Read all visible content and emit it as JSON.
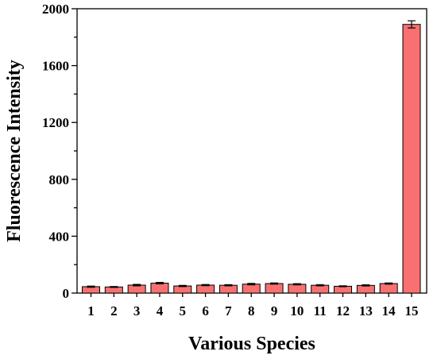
{
  "chart_data": {
    "type": "bar",
    "title": "",
    "xlabel": "Various Species",
    "ylabel": "Fluorescence Intensity",
    "ylim": [
      0,
      2000
    ],
    "yticks": [
      0,
      400,
      800,
      1200,
      1600,
      2000
    ],
    "y_minor_step": 200,
    "grid": false,
    "categories": [
      "1",
      "2",
      "3",
      "4",
      "5",
      "6",
      "7",
      "8",
      "9",
      "10",
      "11",
      "12",
      "13",
      "14",
      "15"
    ],
    "values": [
      45,
      43,
      56,
      70,
      50,
      56,
      55,
      63,
      67,
      62,
      55,
      48,
      54,
      67,
      1890
    ],
    "errors": [
      4,
      3,
      5,
      5,
      4,
      4,
      4,
      5,
      4,
      4,
      4,
      3,
      4,
      4,
      25
    ],
    "bar_color": "#f87070",
    "bar_edge_color": "#000000"
  }
}
